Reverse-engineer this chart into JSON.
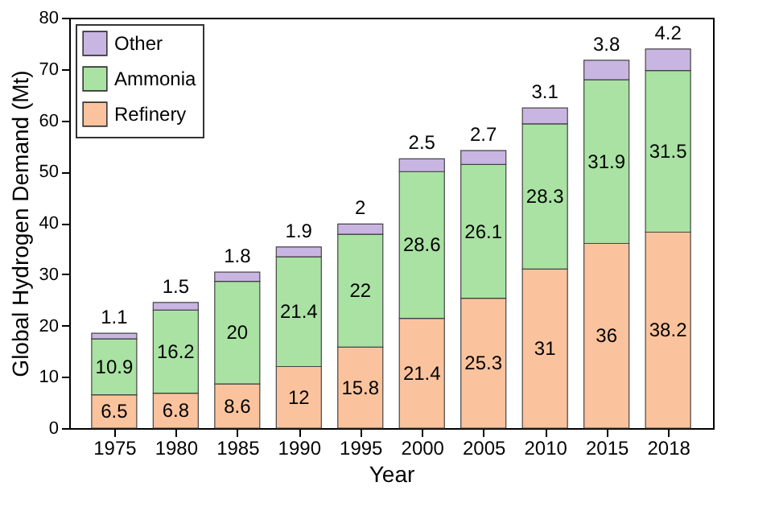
{
  "chart_data": {
    "type": "bar",
    "stacked": true,
    "xlabel": "Year",
    "ylabel": "Global Hydrogen Demand (Mt)",
    "categories": [
      "1975",
      "1980",
      "1985",
      "1990",
      "1995",
      "2000",
      "2005",
      "2010",
      "2015",
      "2018"
    ],
    "series": [
      {
        "name": "Refinery",
        "color": "#fbc39d",
        "values": [
          6.5,
          6.8,
          8.6,
          12,
          15.8,
          21.4,
          25.3,
          31,
          36,
          38.2
        ]
      },
      {
        "name": "Ammonia",
        "color": "#a9e2a3",
        "values": [
          10.9,
          16.2,
          20,
          21.4,
          22,
          28.6,
          26.1,
          28.3,
          31.9,
          31.5
        ]
      },
      {
        "name": "Other",
        "color": "#c9b5e2",
        "values": [
          1.1,
          1.5,
          1.8,
          1.9,
          2,
          2.5,
          2.7,
          3.1,
          3.8,
          4.2
        ]
      }
    ],
    "ylim": [
      0,
      80
    ],
    "yticks": [
      0,
      10,
      20,
      30,
      40,
      50,
      60,
      70,
      80
    ],
    "data_labels": true,
    "legend": "top left",
    "grid": false
  }
}
